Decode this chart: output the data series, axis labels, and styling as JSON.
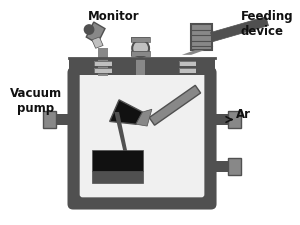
{
  "bg_color": "#ffffff",
  "dark_gray": "#505050",
  "mid_gray": "#888888",
  "light_gray": "#c0c0c0",
  "black": "#111111",
  "labels": {
    "monitor": "Monitor",
    "feeding": "Feeding\ndevice",
    "vacuum": "Vacuum\npump",
    "ar": "Ar"
  },
  "label_fontsize": 8.5,
  "label_fontweight": "bold"
}
